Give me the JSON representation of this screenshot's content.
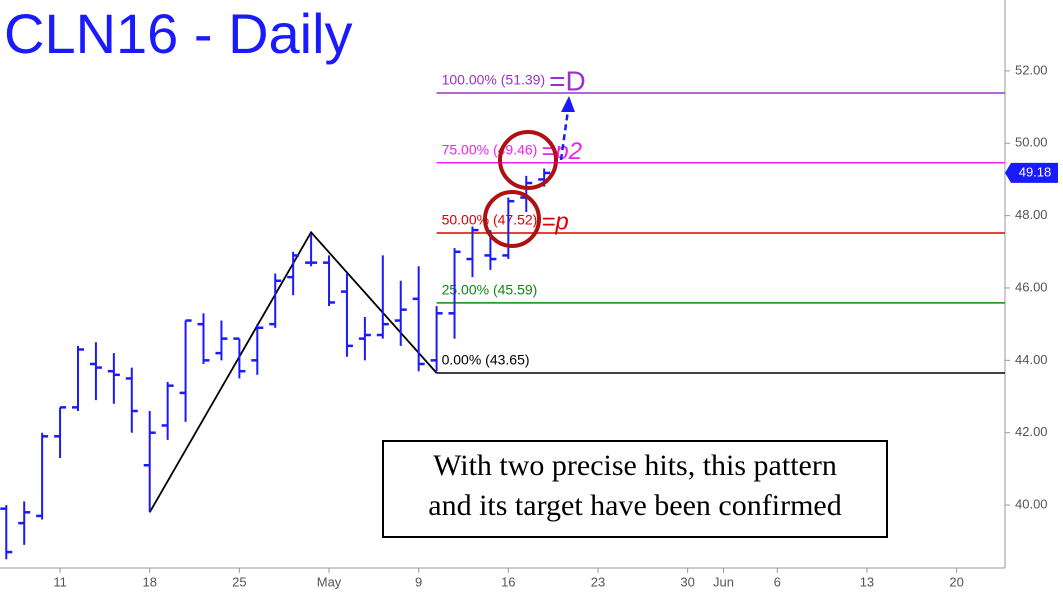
{
  "chart_data": {
    "type": "ohlc",
    "title": "CLN16 - Daily",
    "color": "#1a1aff",
    "x": [
      -3,
      -2,
      -1,
      0,
      1,
      2,
      3,
      4,
      5,
      6,
      7,
      8,
      9,
      10,
      11,
      12,
      13,
      14,
      15,
      16,
      17,
      18,
      19,
      20,
      21,
      22,
      23,
      24,
      25,
      26,
      27
    ],
    "open": [
      39.9,
      39.5,
      39.7,
      41.9,
      42.7,
      43.9,
      43.7,
      43.5,
      41.1,
      42.2,
      43.1,
      45.0,
      44.2,
      44.6,
      44.0,
      45.0,
      46.3,
      46.7,
      46.7,
      45.9,
      44.6,
      44.7,
      45.1,
      45.7,
      44.0,
      45.3,
      46.8,
      46.9,
      46.9,
      48.5,
      49.0
    ],
    "high": [
      40.0,
      40.1,
      42.0,
      42.7,
      44.4,
      44.5,
      44.2,
      43.8,
      42.6,
      43.4,
      45.1,
      45.3,
      45.1,
      44.6,
      45.0,
      46.4,
      47.0,
      47.5,
      46.9,
      46.4,
      45.2,
      46.9,
      46.2,
      46.6,
      45.5,
      47.1,
      47.7,
      47.6,
      48.5,
      49.1,
      49.3
    ],
    "low": [
      38.5,
      38.9,
      39.6,
      41.3,
      42.6,
      42.9,
      42.8,
      42.0,
      39.8,
      41.8,
      42.3,
      43.9,
      44.0,
      43.5,
      43.6,
      44.9,
      45.8,
      46.6,
      45.5,
      44.1,
      44.0,
      44.6,
      44.4,
      43.7,
      43.7,
      44.6,
      46.3,
      46.5,
      46.8,
      48.1,
      48.8
    ],
    "close": [
      38.7,
      39.8,
      41.9,
      42.7,
      44.3,
      43.8,
      43.6,
      42.6,
      42.0,
      43.3,
      45.1,
      44.0,
      44.6,
      43.7,
      44.9,
      46.2,
      46.9,
      46.7,
      45.6,
      44.4,
      44.7,
      45.0,
      45.4,
      43.9,
      45.3,
      47.0,
      47.6,
      46.8,
      48.4,
      48.9,
      49.18
    ],
    "xlim": [
      -3.35,
      52.7
    ],
    "xticks": [
      {
        "value": 0,
        "label": "11"
      },
      {
        "value": 5,
        "label": "18"
      },
      {
        "value": 10,
        "label": "25"
      },
      {
        "value": 15,
        "label": "May"
      },
      {
        "value": 20,
        "label": "9"
      },
      {
        "value": 25,
        "label": "16"
      },
      {
        "value": 30,
        "label": "23"
      },
      {
        "value": 35,
        "label": "30"
      },
      {
        "value": 37,
        "label": "Jun"
      },
      {
        "value": 40,
        "label": "6"
      },
      {
        "value": 45,
        "label": "13"
      },
      {
        "value": 50,
        "label": "20"
      }
    ],
    "ylim": [
      38.26,
      53.96
    ],
    "yticks": [
      {
        "value": 40,
        "label": "40.00"
      },
      {
        "value": 42,
        "label": "42.00"
      },
      {
        "value": 44,
        "label": "44.00"
      },
      {
        "value": 46,
        "label": "46.00"
      },
      {
        "value": 48,
        "label": "48.00"
      },
      {
        "value": 50,
        "label": "50.00"
      },
      {
        "value": 52,
        "label": "52.00"
      }
    ],
    "last": 49.18,
    "pattern": {
      "x": [
        5,
        14,
        21
      ],
      "values": [
        39.8,
        47.54,
        43.65
      ],
      "color": "#000000"
    },
    "levels": [
      {
        "label": "100.00% (51.39)",
        "value": 51.39,
        "color": "#9933cc",
        "tag": "=D"
      },
      {
        "label": "75.00% (49.46)",
        "value": 49.46,
        "color": "#ee22ee",
        "tag": "=p2"
      },
      {
        "label": "50.00% (47.52)",
        "value": 47.52,
        "color": "#dd0000",
        "tag": "=p"
      },
      {
        "label": "25.00% (45.59)",
        "value": 45.59,
        "color": "#118811"
      },
      {
        "label": "0.00% (43.65)",
        "value": 43.65,
        "color": "#000000"
      }
    ],
    "annotation": [
      "With two precise hits, this pattern",
      "and its target have been confirmed"
    ]
  }
}
